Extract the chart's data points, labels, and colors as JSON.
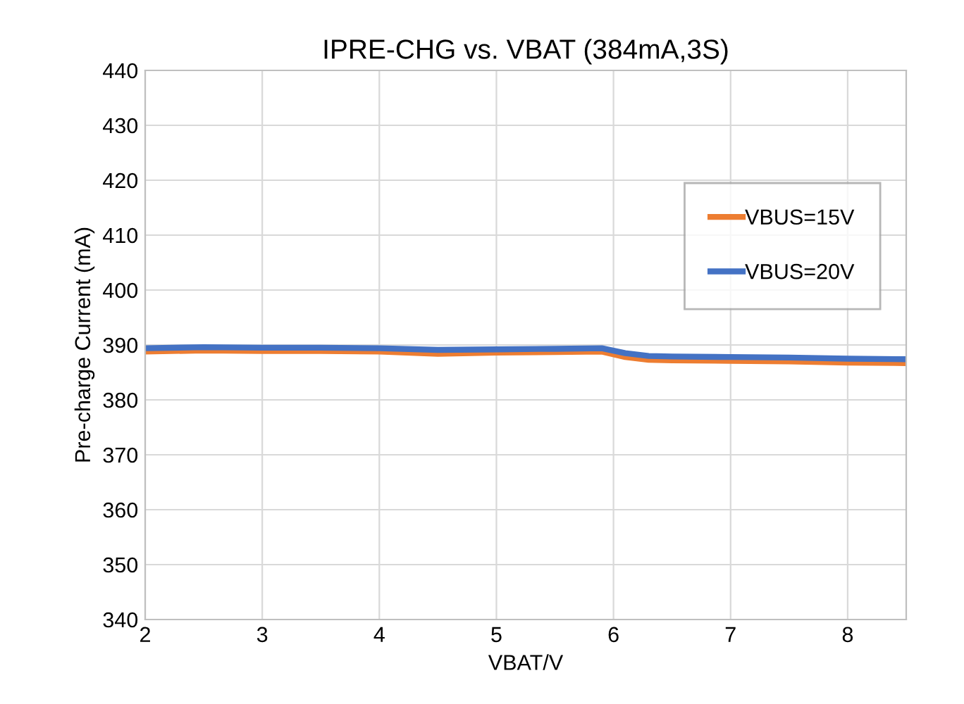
{
  "chart_data": {
    "type": "line",
    "title": "IPRE-CHG vs. VBAT (384mA,3S)",
    "xlabel": "VBAT/V",
    "ylabel": "Pre-charge Current (mA)",
    "xlim": [
      2,
      8.5
    ],
    "xticks": [
      2,
      3,
      4,
      5,
      6,
      7,
      8
    ],
    "ylim": [
      340,
      440
    ],
    "yticks": [
      340,
      350,
      360,
      370,
      380,
      390,
      400,
      410,
      420,
      430,
      440
    ],
    "grid": true,
    "legend": "right",
    "marker": "none",
    "line_style": "solid",
    "series": [
      {
        "name": "VBUS=15V",
        "color": "#ed7d31",
        "x": [
          2,
          2.5,
          3,
          3.5,
          4,
          4.5,
          5,
          5.5,
          5.9,
          6.1,
          6.3,
          6.5,
          7,
          7.5,
          8,
          8.5
        ],
        "values": [
          388.8,
          389.0,
          388.9,
          388.9,
          388.8,
          388.4,
          388.6,
          388.7,
          388.8,
          387.8,
          387.3,
          387.2,
          387.1,
          387.0,
          386.8,
          386.7
        ]
      },
      {
        "name": "VBUS=20V",
        "color": "#4472c4",
        "x": [
          2,
          2.5,
          3,
          3.5,
          4,
          4.5,
          5,
          5.5,
          5.9,
          6.1,
          6.3,
          6.5,
          7,
          7.5,
          8,
          8.5
        ],
        "values": [
          389.4,
          389.6,
          389.5,
          389.5,
          389.4,
          389.1,
          389.2,
          389.3,
          389.4,
          388.5,
          388.0,
          387.9,
          387.8,
          387.7,
          387.5,
          387.4
        ]
      }
    ]
  }
}
